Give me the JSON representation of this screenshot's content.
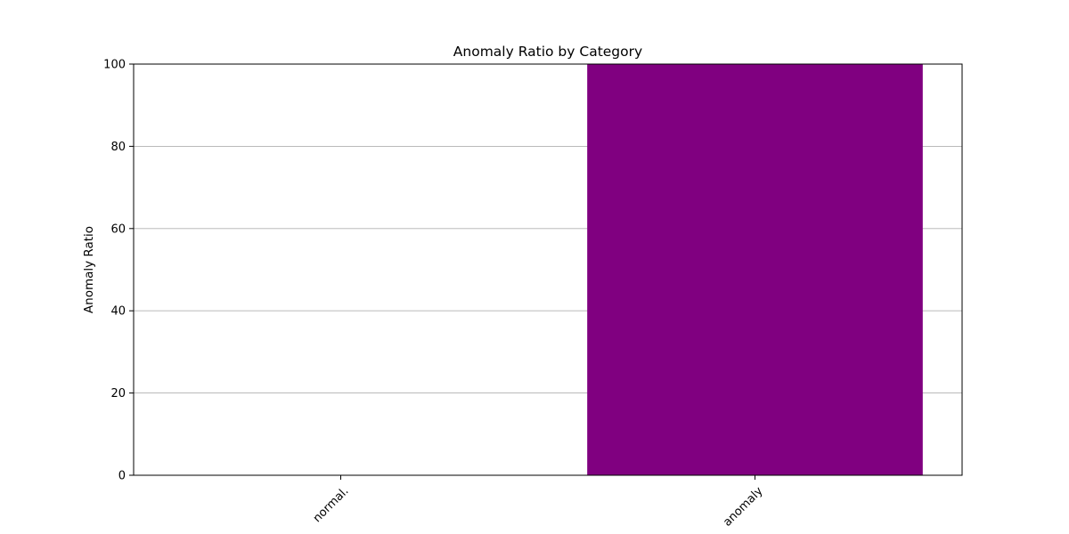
{
  "chart_data": {
    "type": "bar",
    "title": "Anomaly Ratio by Category",
    "xlabel": "",
    "ylabel": "Anomaly Ratio",
    "categories": [
      "normal.",
      "anomaly"
    ],
    "values": [
      0,
      100
    ],
    "ylim": [
      0,
      100
    ],
    "yticks": [
      0,
      20,
      40,
      60,
      80,
      100
    ],
    "grid": "y",
    "legend": "none",
    "bar_color": "#800080",
    "grid_color": "#b0b0b0",
    "axis_color": "#000000",
    "xtick_rotation_deg": 45
  }
}
